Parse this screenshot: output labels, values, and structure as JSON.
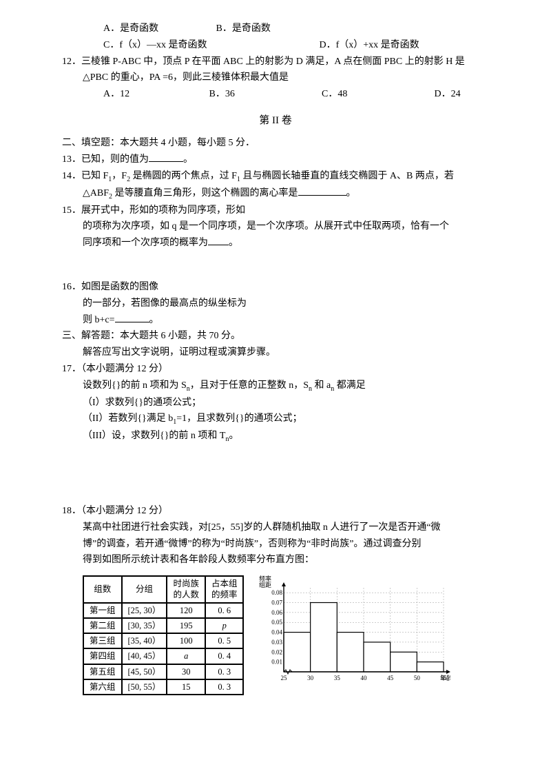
{
  "q11": {
    "optA": "A．是奇函数",
    "optB": "B．是奇函数",
    "optC": "C．f（x）—xx 是奇函数",
    "optD": "D．f（x）+xx 是奇函数"
  },
  "q12": {
    "num": "12．",
    "text1": "三棱锥 P-ABC 中，顶点 P 在平面 ABC 上的射影为 D 满足，A 点在侧面 PBC 上的射影 H 是",
    "text2": "△PBC 的重心，PA =6，则此三棱锥体积最大值是",
    "optA": "A．12",
    "optB": "B．36",
    "optC": "C．48",
    "optD": "D．24"
  },
  "partII": "第 II 卷",
  "sec2": "二、填空题：本大题共 4 小题，每小题 5 分．",
  "q13": {
    "num": "13．",
    "text": "已知，则的值为",
    "period": "。"
  },
  "q14": {
    "num": "14．",
    "text1a": "已知 F",
    "text1b": "，F",
    "text1c": " 是椭圆的两个焦点，过 F",
    "text1d": " 且与椭圆长轴垂直的直线交椭圆于 A、B 两点，若",
    "text2a": "△ABF",
    "text2b": " 是等腰直角三角形，则这个椭圆的离心率是",
    "period": "。"
  },
  "q15": {
    "num": "15．",
    "text1": "展开式中，形如的项称为同序项，形如",
    "text2": "的项称为次序项，如 q 是一个同序项，是一个次序项。从展开式中任取两项，恰有一个",
    "text3": "同序项和一个次序项的概率为",
    "period": "。"
  },
  "q16": {
    "num": "16．",
    "text1": "如图是函数的图像",
    "text2": "的一部分，若图像的最高点的纵坐标为",
    "text3": "则 b+c=",
    "period": "。"
  },
  "sec3a": "三、解答题：本大题共 6 小题，共 70 分。",
  "sec3b": "解答应写出文字说明，证明过程或演算步骤。",
  "q17": {
    "num": "17．",
    "title": "（本小题满分 12 分）",
    "l1a": "设数列{}的前 n 项和为 S",
    "l1b": "，且对于任意的正整数 n，S",
    "l1c": " 和 a",
    "l1d": " 都满足",
    "l2": "（I）求数列{}的通项公式；",
    "l3a": "（II）若数列{}满足 b",
    "l3b": "=1，且求数列{}的通项公式；",
    "l4a": "（III）设，求数列{}的前 n 项和 T",
    "l4b": "。"
  },
  "q18": {
    "num": "18．",
    "title": "（本小题满分 12 分）",
    "l1": "某高中社团进行社会实践，对[25，55]岁的人群随机抽取 n 人进行了一次是否开通“微",
    "l2": "博”的调查，若开通“微博”的称为“时尚族”，否则称为“非时尚族”。通过调查分别",
    "l3": "得到如图所示统计表和各年龄段人数频率分布直方图："
  },
  "table": {
    "headers": [
      "组数",
      "分组",
      "时尚族\n的人数",
      "占本组\n的频率"
    ],
    "rows": [
      [
        "第一组",
        "[25, 30）",
        "120",
        "0. 6"
      ],
      [
        "第二组",
        "[30, 35）",
        "195",
        "p"
      ],
      [
        "第三组",
        "[35, 40）",
        "100",
        "0. 5"
      ],
      [
        "第四组",
        "[40, 45）",
        "a",
        "0. 4"
      ],
      [
        "第五组",
        "[45, 50）",
        "30",
        "0. 3"
      ],
      [
        "第六组",
        "[50, 55）",
        "15",
        "0. 3"
      ]
    ]
  },
  "histogram": {
    "ylabel_top": "频率",
    "ylabel_bottom": "组距",
    "yticks": [
      "0.01",
      "0.02",
      "0.03",
      "0.04",
      "0.05",
      "0.06",
      "0.07",
      "0.08"
    ],
    "xticks": [
      "25",
      "30",
      "35",
      "40",
      "45",
      "50",
      "55"
    ],
    "xlabel": "年龄(岁)",
    "bars": [
      0.04,
      0.07,
      0.04,
      0.03,
      0.02,
      0.01
    ],
    "ymax": 0.085,
    "bar_fill": "#ffffff",
    "bar_stroke": "#000000",
    "grid_color": "#999999",
    "axis_color": "#000000",
    "font_size": 9
  }
}
